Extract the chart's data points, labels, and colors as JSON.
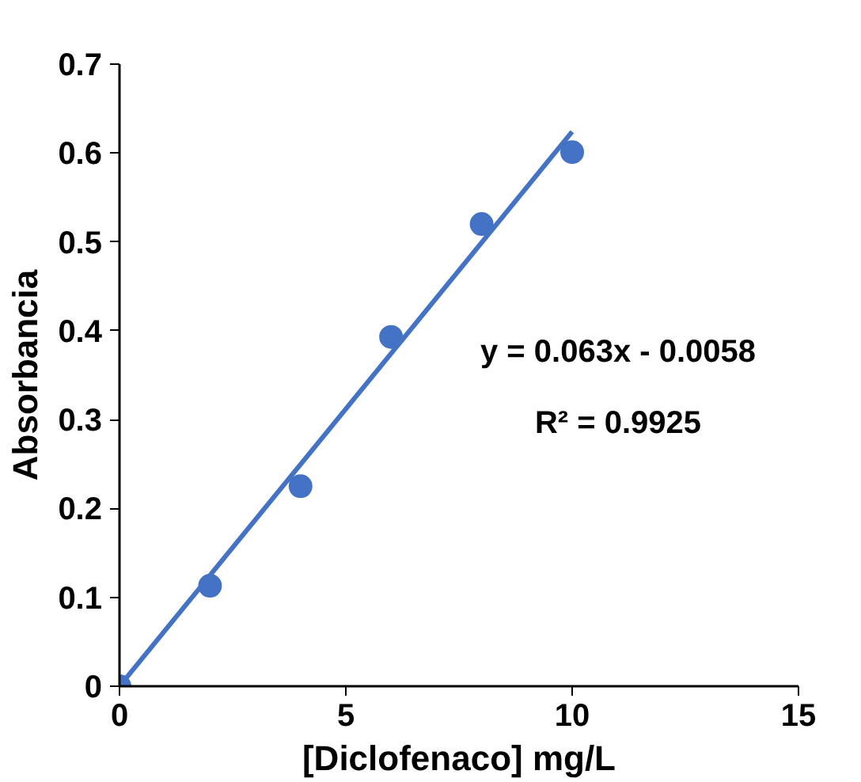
{
  "chart_data": {
    "type": "scatter",
    "xlabel": "[Diclofenaco] mg/L",
    "ylabel": "Absorbancia",
    "x": [
      0,
      2,
      4,
      6,
      8,
      10
    ],
    "series": [
      {
        "color": "#4472c4",
        "values": [
          0,
          0.113,
          0.225,
          0.393,
          0.52,
          0.601
        ],
        "marker": "circle"
      },
      {
        "type": "line",
        "color": "#4472c4",
        "x": [
          0,
          10
        ],
        "values": [
          0,
          0.624
        ],
        "line_style": "solid"
      }
    ],
    "xlim": [
      0,
      15
    ],
    "xticks": [
      0,
      5,
      10,
      15
    ],
    "ylim": [
      0,
      0.7
    ],
    "yticks": [
      0,
      0.1,
      0.2,
      0.3,
      0.4,
      0.5,
      0.6,
      0.7
    ],
    "grid": false,
    "annotations": [
      "y = 0.063x - 0.0058",
      "R² = 0.9925"
    ]
  }
}
